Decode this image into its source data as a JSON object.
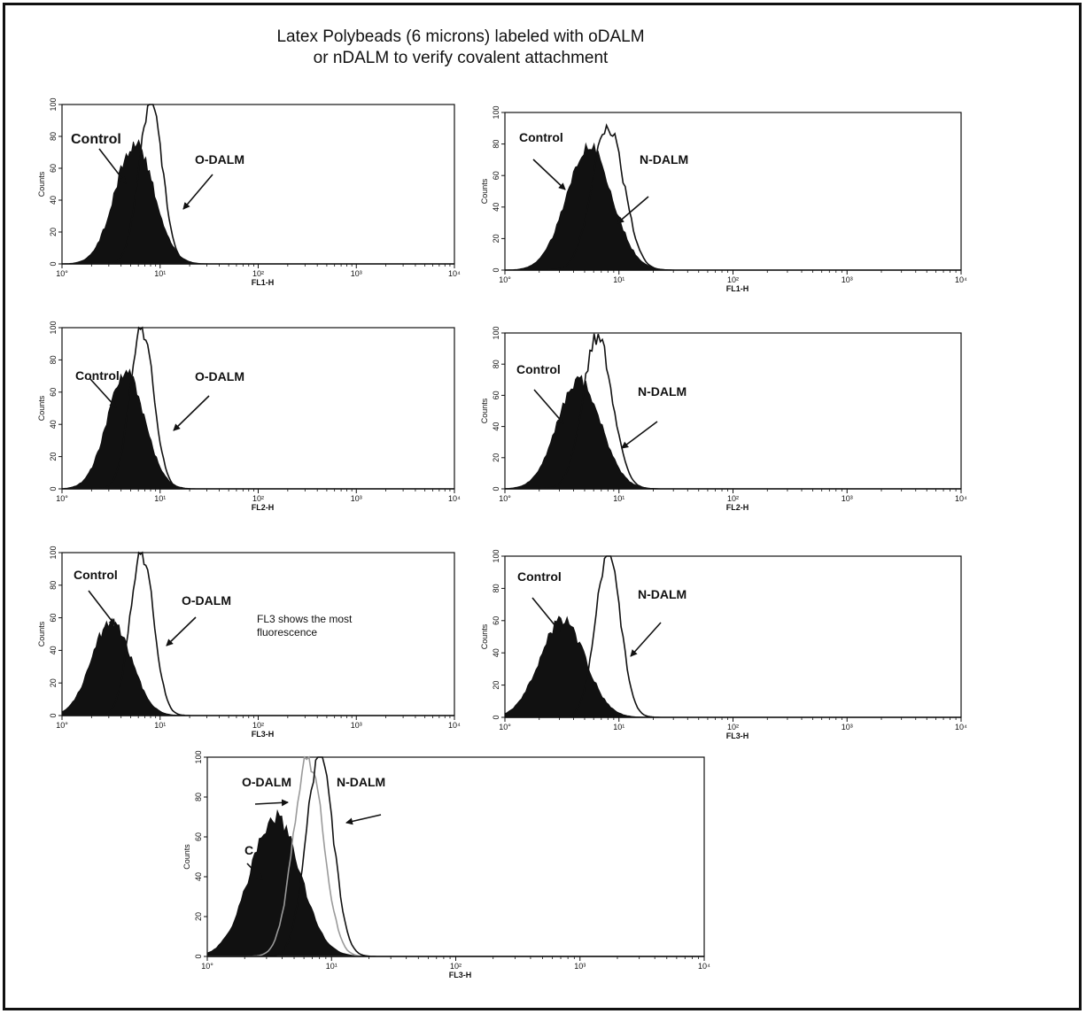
{
  "title": {
    "line1": "Latex Polybeads (6 microns) labeled with oDALM",
    "line2": "or nDALM to verify covalent attachment"
  },
  "colors": {
    "control_fill": "#111111",
    "outline": "#111111",
    "secondary_outline": "#9a9a9a"
  },
  "chart_data": [
    {
      "type": "area",
      "panel": "FL1 oDALM",
      "xlabel": "FL1-H",
      "ylabel": "Counts",
      "x_scale": "log",
      "xlim": [
        1,
        10000
      ],
      "ylim": [
        0,
        100
      ],
      "xticks": [
        "10°",
        "10¹",
        "10²",
        "10³",
        "10⁴"
      ],
      "yticks": [
        "0",
        "20",
        "40",
        "60",
        "80",
        "100"
      ],
      "series": [
        {
          "name": "Control",
          "fill": true,
          "peak_x": 5.5,
          "peak_y": 75,
          "spread": 0.2
        },
        {
          "name": "O-DALM",
          "fill": false,
          "peak_x": 8,
          "peak_y": 100,
          "spread": 0.12
        }
      ],
      "annotations": [
        {
          "text": "Control"
        },
        {
          "text": "O-DALM"
        }
      ]
    },
    {
      "type": "area",
      "panel": "FL1 nDALM",
      "xlabel": "FL1-H",
      "ylabel": "Counts",
      "x_scale": "log",
      "xlim": [
        1,
        10000
      ],
      "ylim": [
        0,
        100
      ],
      "xticks": [
        "10°",
        "10¹",
        "10²",
        "10³",
        "10⁴"
      ],
      "yticks": [
        "0",
        "20",
        "40",
        "60",
        "80",
        "100"
      ],
      "series": [
        {
          "name": "Control",
          "fill": true,
          "peak_x": 5.5,
          "peak_y": 78,
          "spread": 0.2
        },
        {
          "name": "N-DALM",
          "fill": false,
          "peak_x": 8,
          "peak_y": 92,
          "spread": 0.14
        }
      ],
      "annotations": [
        {
          "text": "Control"
        },
        {
          "text": "N-DALM"
        }
      ]
    },
    {
      "type": "area",
      "panel": "FL2 oDALM",
      "xlabel": "FL2-H",
      "ylabel": "Counts",
      "x_scale": "log",
      "xlim": [
        1,
        10000
      ],
      "ylim": [
        0,
        100
      ],
      "xticks": [
        "10°",
        "10¹",
        "10²",
        "10³",
        "10⁴"
      ],
      "yticks": [
        "0",
        "20",
        "40",
        "60",
        "80",
        "100"
      ],
      "series": [
        {
          "name": "Control",
          "fill": true,
          "peak_x": 4.5,
          "peak_y": 72,
          "spread": 0.19
        },
        {
          "name": "O-DALM",
          "fill": false,
          "peak_x": 6.5,
          "peak_y": 100,
          "spread": 0.12
        }
      ],
      "annotations": [
        {
          "text": "Control"
        },
        {
          "text": "O-DALM"
        }
      ]
    },
    {
      "type": "area",
      "panel": "FL2 nDALM",
      "xlabel": "FL2-H",
      "ylabel": "Counts",
      "x_scale": "log",
      "xlim": [
        1,
        10000
      ],
      "ylim": [
        0,
        100
      ],
      "xticks": [
        "10°",
        "10¹",
        "10²",
        "10³",
        "10⁴"
      ],
      "yticks": [
        "0",
        "20",
        "40",
        "60",
        "80",
        "100"
      ],
      "series": [
        {
          "name": "Control",
          "fill": true,
          "peak_x": 4.5,
          "peak_y": 70,
          "spread": 0.19
        },
        {
          "name": "N-DALM",
          "fill": false,
          "peak_x": 6.5,
          "peak_y": 97,
          "spread": 0.13
        }
      ],
      "annotations": [
        {
          "text": "Control"
        },
        {
          "text": "N-DALM"
        }
      ]
    },
    {
      "type": "area",
      "panel": "FL3 oDALM",
      "xlabel": "FL3-H",
      "ylabel": "Counts",
      "x_scale": "log",
      "xlim": [
        1,
        10000
      ],
      "ylim": [
        0,
        100
      ],
      "xticks": [
        "10°",
        "10¹",
        "10²",
        "10³",
        "10⁴"
      ],
      "yticks": [
        "0",
        "20",
        "40",
        "60",
        "80",
        "100"
      ],
      "series": [
        {
          "name": "Control",
          "fill": true,
          "peak_x": 3.2,
          "peak_y": 58,
          "spread": 0.2
        },
        {
          "name": "O-DALM",
          "fill": false,
          "peak_x": 6.5,
          "peak_y": 100,
          "spread": 0.12
        }
      ],
      "annotations": [
        {
          "text": "Control"
        },
        {
          "text": "O-DALM"
        },
        {
          "text": "FL3 shows the most"
        },
        {
          "text": "fluorescence"
        }
      ]
    },
    {
      "type": "area",
      "panel": "FL3 nDALM",
      "xlabel": "FL3-H",
      "ylabel": "Counts",
      "x_scale": "log",
      "xlim": [
        1,
        10000
      ],
      "ylim": [
        0,
        100
      ],
      "xticks": [
        "10°",
        "10¹",
        "10²",
        "10³",
        "10⁴"
      ],
      "yticks": [
        "0",
        "20",
        "40",
        "60",
        "80",
        "100"
      ],
      "series": [
        {
          "name": "Control",
          "fill": true,
          "peak_x": 3.2,
          "peak_y": 60,
          "spread": 0.2
        },
        {
          "name": "N-DALM",
          "fill": false,
          "peak_x": 8,
          "peak_y": 100,
          "spread": 0.11
        }
      ],
      "annotations": [
        {
          "text": "Control"
        },
        {
          "text": "N-DALM"
        }
      ]
    },
    {
      "type": "area",
      "panel": "FL3 overlay",
      "xlabel": "FL3-H",
      "ylabel": "Counts",
      "x_scale": "log",
      "xlim": [
        1,
        10000
      ],
      "ylim": [
        0,
        100
      ],
      "xticks": [
        "10°",
        "10¹",
        "10²",
        "10³",
        "10⁴"
      ],
      "yticks": [
        "0",
        "20",
        "40",
        "60",
        "80",
        "100"
      ],
      "series": [
        {
          "name": "C",
          "fill": true,
          "peak_x": 3.5,
          "peak_y": 70,
          "spread": 0.2
        },
        {
          "name": "O-DALM",
          "fill": false,
          "peak_x": 6.5,
          "peak_y": 100,
          "spread": 0.12
        },
        {
          "name": "N-DALM",
          "fill": false,
          "peak_x": 8,
          "peak_y": 100,
          "spread": 0.11
        }
      ],
      "annotations": [
        {
          "text": "O-DALM"
        },
        {
          "text": "N-DALM"
        },
        {
          "text": "C"
        }
      ]
    }
  ]
}
